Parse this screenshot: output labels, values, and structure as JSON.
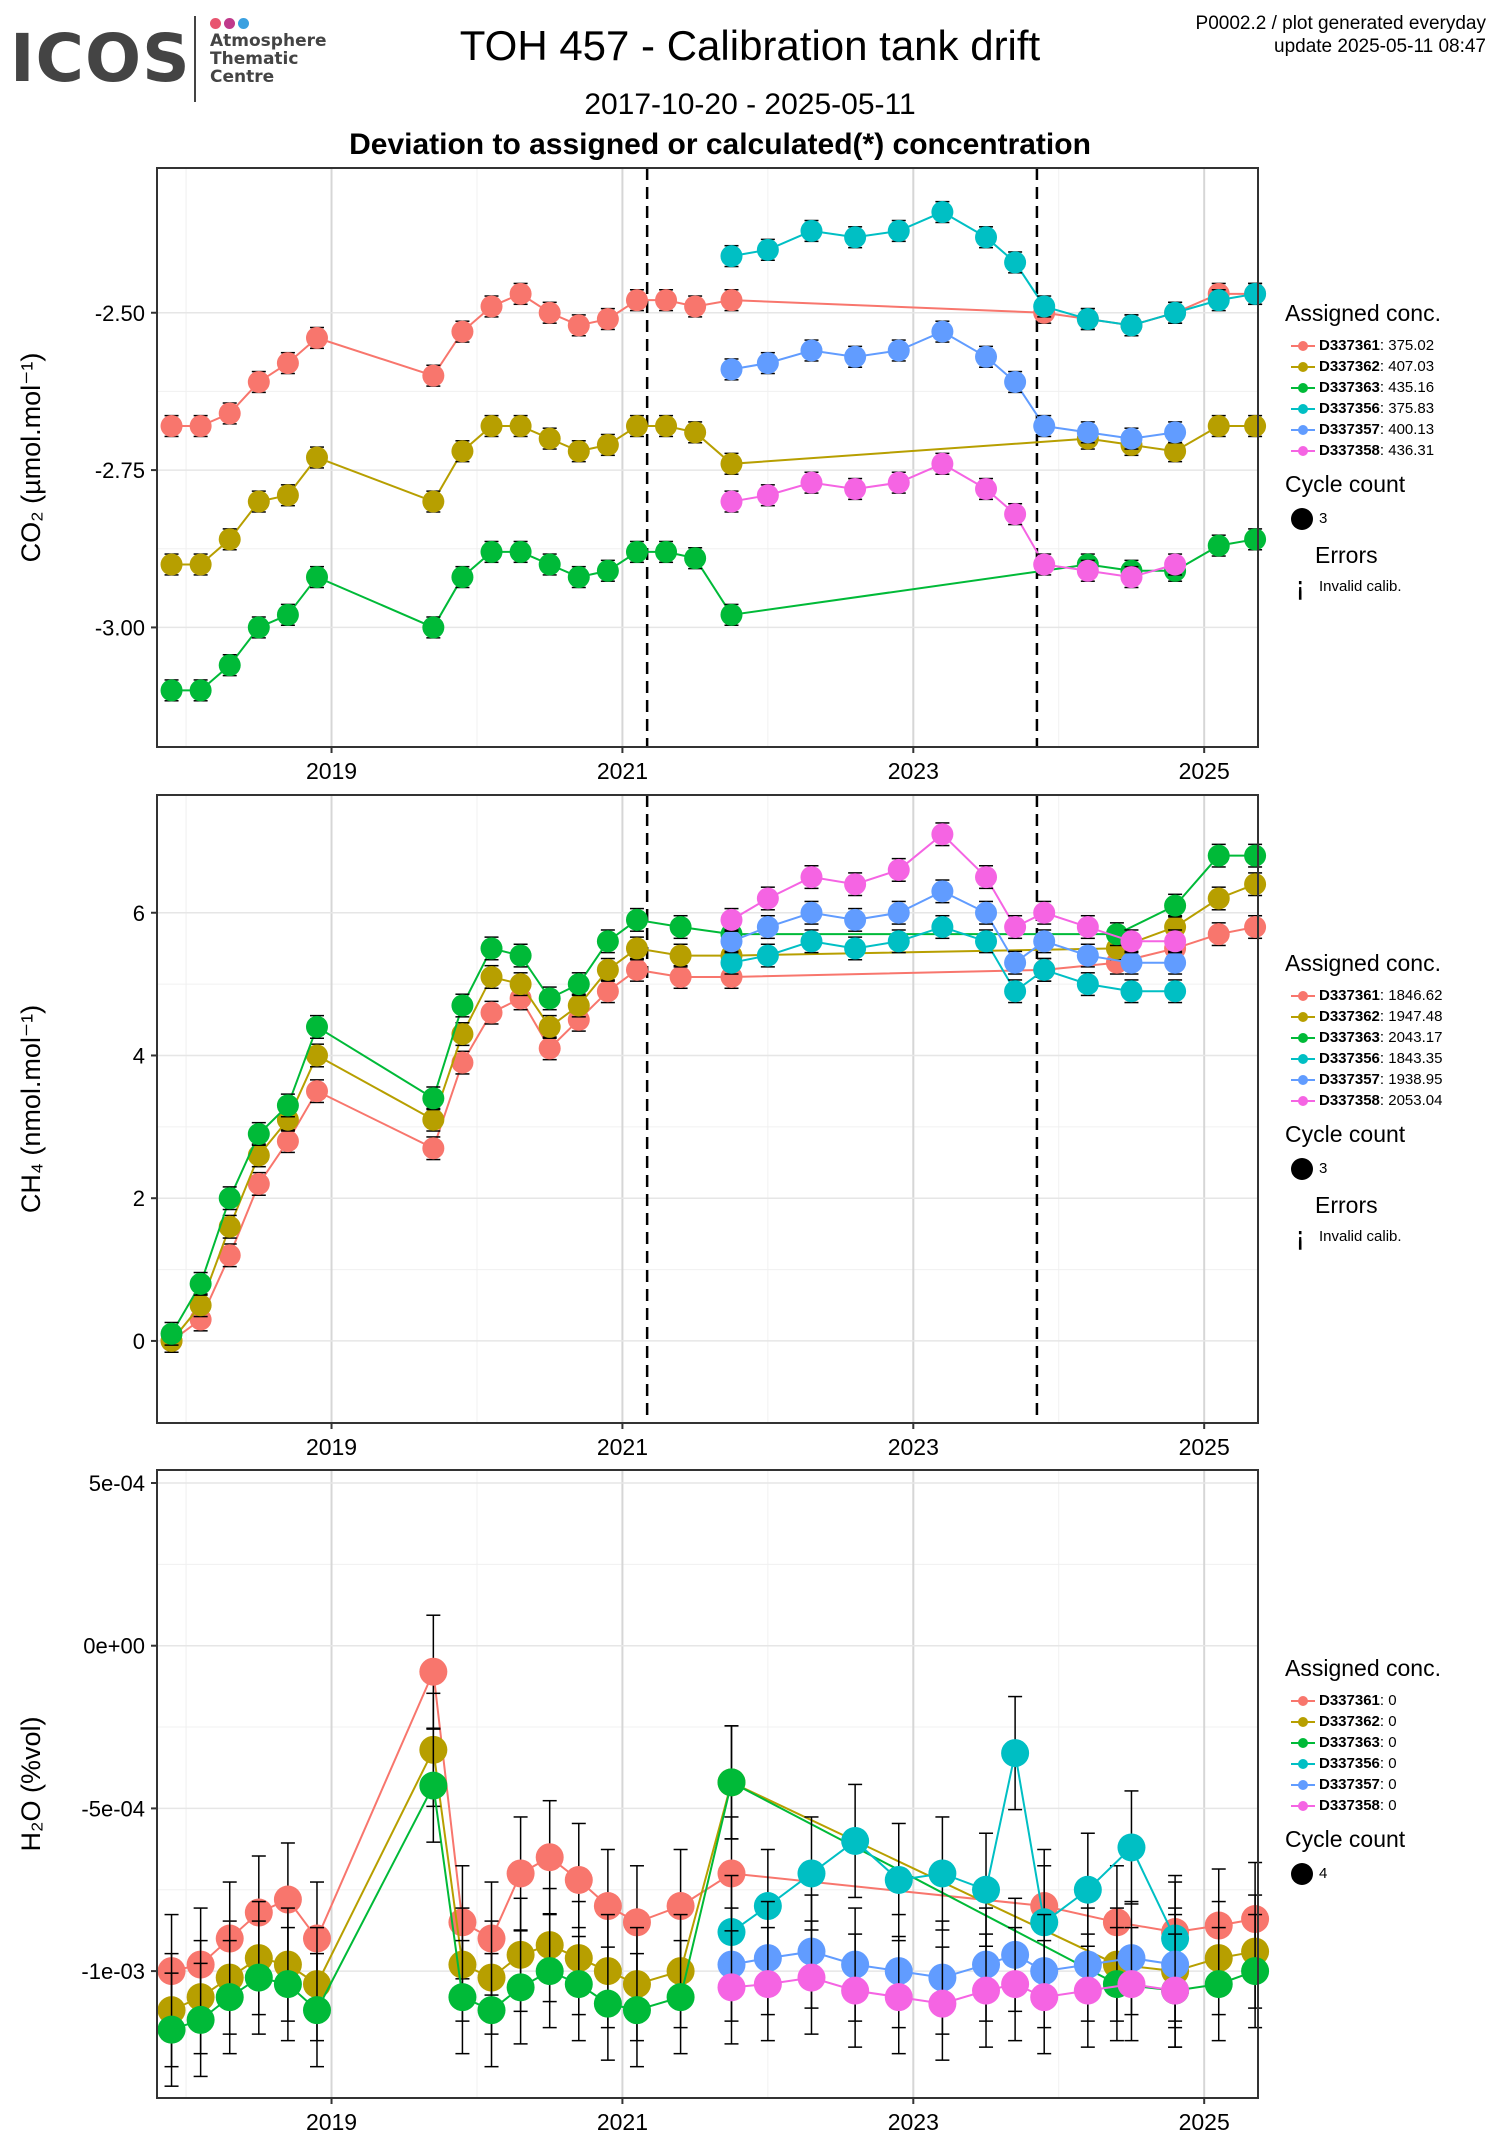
{
  "logo": {
    "text": "ICOS",
    "subtitle_lines": [
      "Atmosphere",
      "Thematic",
      "Centre"
    ],
    "dot_colors": [
      "#e8556f",
      "#c0398b",
      "#3aa0e0"
    ]
  },
  "header": {
    "title": "TOH 457 - Calibration tank drift",
    "date_range": "2017-10-20 - 2025-05-11",
    "subtitle": "Deviation to assigned or calculated(*) concentration",
    "meta_line1": "P0002.2 / plot generated everyday",
    "meta_line2": "update  2025-05-11 08:47"
  },
  "series_colors": {
    "D337361": "#f8766d",
    "D337362": "#b79f00",
    "D337363": "#00ba38",
    "D337356": "#00bfc4",
    "D337357": "#619cff",
    "D337358": "#f564e3"
  },
  "legends": [
    {
      "title": "Assigned conc.",
      "entries": [
        {
          "tank": "D337361",
          "value": "375.02"
        },
        {
          "tank": "D337362",
          "value": "407.03"
        },
        {
          "tank": "D337363",
          "value": "435.16"
        },
        {
          "tank": "D337356",
          "value": "375.83"
        },
        {
          "tank": "D337357",
          "value": "400.13"
        },
        {
          "tank": "D337358",
          "value": "436.31"
        }
      ],
      "cycle_title": "Cycle count",
      "cycle_value": "3",
      "errors_title": "Errors",
      "errors_label": "Invalid calib.",
      "errors_glyph": "¡"
    },
    {
      "title": "Assigned conc.",
      "entries": [
        {
          "tank": "D337361",
          "value": "1846.62"
        },
        {
          "tank": "D337362",
          "value": "1947.48"
        },
        {
          "tank": "D337363",
          "value": "2043.17"
        },
        {
          "tank": "D337356",
          "value": "1843.35"
        },
        {
          "tank": "D337357",
          "value": "1938.95"
        },
        {
          "tank": "D337358",
          "value": "2053.04"
        }
      ],
      "cycle_title": "Cycle count",
      "cycle_value": "3",
      "errors_title": "Errors",
      "errors_label": "Invalid calib.",
      "errors_glyph": "¡"
    },
    {
      "title": "Assigned conc.",
      "entries": [
        {
          "tank": "D337361",
          "value": "0"
        },
        {
          "tank": "D337362",
          "value": "0"
        },
        {
          "tank": "D337363",
          "value": "0"
        },
        {
          "tank": "D337356",
          "value": "0"
        },
        {
          "tank": "D337357",
          "value": "0"
        },
        {
          "tank": "D337358",
          "value": "0"
        }
      ],
      "cycle_title": "Cycle count",
      "cycle_value": "4"
    }
  ],
  "chart_data": [
    {
      "type": "scatter",
      "ylabel": "CO₂ (µmol.mol⁻¹)",
      "x_ticks": [
        "2019",
        "2021",
        "2023",
        "2025"
      ],
      "y_ticks": [
        "-2.50",
        "-2.75",
        "-3.00"
      ],
      "xlim": [
        2017.8,
        2025.37
      ],
      "ylim": [
        -3.19,
        -2.27
      ],
      "vlines": [
        2021.17,
        2023.85
      ],
      "grid": true,
      "series": [
        {
          "name": "D337361",
          "x": [
            2017.9,
            2018.1,
            2018.3,
            2018.5,
            2018.7,
            2018.9,
            2019.7,
            2019.9,
            2020.1,
            2020.3,
            2020.5,
            2020.7,
            2020.9,
            2021.1,
            2021.3,
            2021.5,
            2021.75,
            2023.9,
            2024.2,
            2024.5,
            2024.8,
            2025.1,
            2025.35
          ],
          "y": [
            -2.68,
            -2.68,
            -2.66,
            -2.61,
            -2.58,
            -2.54,
            -2.6,
            -2.53,
            -2.49,
            -2.47,
            -2.5,
            -2.52,
            -2.51,
            -2.48,
            -2.48,
            -2.49,
            -2.48,
            -2.5,
            -2.51,
            -2.52,
            -2.5,
            -2.47,
            -2.47
          ]
        },
        {
          "name": "D337362",
          "x": [
            2017.9,
            2018.1,
            2018.3,
            2018.5,
            2018.7,
            2018.9,
            2019.7,
            2019.9,
            2020.1,
            2020.3,
            2020.5,
            2020.7,
            2020.9,
            2021.1,
            2021.3,
            2021.5,
            2021.75,
            2024.2,
            2024.5,
            2024.8,
            2025.1,
            2025.35
          ],
          "y": [
            -2.9,
            -2.9,
            -2.86,
            -2.8,
            -2.79,
            -2.73,
            -2.8,
            -2.72,
            -2.68,
            -2.68,
            -2.7,
            -2.72,
            -2.71,
            -2.68,
            -2.68,
            -2.69,
            -2.74,
            -2.7,
            -2.71,
            -2.72,
            -2.68,
            -2.68
          ]
        },
        {
          "name": "D337363",
          "x": [
            2017.9,
            2018.1,
            2018.3,
            2018.5,
            2018.7,
            2018.9,
            2019.7,
            2019.9,
            2020.1,
            2020.3,
            2020.5,
            2020.7,
            2020.9,
            2021.1,
            2021.3,
            2021.5,
            2021.75,
            2024.2,
            2024.5,
            2024.8,
            2025.1,
            2025.35
          ],
          "y": [
            -3.1,
            -3.1,
            -3.06,
            -3.0,
            -2.98,
            -2.92,
            -3.0,
            -2.92,
            -2.88,
            -2.88,
            -2.9,
            -2.92,
            -2.91,
            -2.88,
            -2.88,
            -2.89,
            -2.98,
            -2.9,
            -2.91,
            -2.91,
            -2.87,
            -2.86
          ]
        },
        {
          "name": "D337356",
          "x": [
            2021.75,
            2022.0,
            2022.3,
            2022.6,
            2022.9,
            2023.2,
            2023.5,
            2023.7,
            2023.9,
            2024.2,
            2024.5,
            2024.8,
            2025.1,
            2025.35
          ],
          "y": [
            -2.41,
            -2.4,
            -2.37,
            -2.38,
            -2.37,
            -2.34,
            -2.38,
            -2.42,
            -2.49,
            -2.51,
            -2.52,
            -2.5,
            -2.48,
            -2.47
          ]
        },
        {
          "name": "D337357",
          "x": [
            2021.75,
            2022.0,
            2022.3,
            2022.6,
            2022.9,
            2023.2,
            2023.5,
            2023.7,
            2023.9,
            2024.2,
            2024.5,
            2024.8
          ],
          "y": [
            -2.59,
            -2.58,
            -2.56,
            -2.57,
            -2.56,
            -2.53,
            -2.57,
            -2.61,
            -2.68,
            -2.69,
            -2.7,
            -2.69
          ]
        },
        {
          "name": "D337358",
          "x": [
            2021.75,
            2022.0,
            2022.3,
            2022.6,
            2022.9,
            2023.2,
            2023.5,
            2023.7,
            2023.9,
            2024.2,
            2024.5,
            2024.8
          ],
          "y": [
            -2.8,
            -2.79,
            -2.77,
            -2.78,
            -2.77,
            -2.74,
            -2.78,
            -2.82,
            -2.9,
            -2.91,
            -2.92,
            -2.9
          ]
        }
      ]
    },
    {
      "type": "scatter",
      "ylabel": "CH₄ (nmol.mol⁻¹)",
      "x_ticks": [
        "2019",
        "2021",
        "2023",
        "2025"
      ],
      "y_ticks": [
        "0",
        "2",
        "4",
        "6"
      ],
      "xlim": [
        2017.8,
        2025.37
      ],
      "ylim": [
        -1.15,
        7.65
      ],
      "vlines": [
        2021.17,
        2023.85
      ],
      "grid": true,
      "series": [
        {
          "name": "D337361",
          "x": [
            2017.9,
            2018.1,
            2018.3,
            2018.5,
            2018.7,
            2018.9,
            2019.7,
            2019.9,
            2020.1,
            2020.3,
            2020.5,
            2020.7,
            2020.9,
            2021.1,
            2021.4,
            2021.75,
            2023.9,
            2024.4,
            2024.8,
            2025.1,
            2025.35
          ],
          "y": [
            0.0,
            0.3,
            1.2,
            2.2,
            2.8,
            3.5,
            2.7,
            3.9,
            4.6,
            4.8,
            4.1,
            4.5,
            4.9,
            5.2,
            5.1,
            5.1,
            5.2,
            5.3,
            5.5,
            5.7,
            5.8
          ]
        },
        {
          "name": "D337362",
          "x": [
            2017.9,
            2018.1,
            2018.3,
            2018.5,
            2018.7,
            2018.9,
            2019.7,
            2019.9,
            2020.1,
            2020.3,
            2020.5,
            2020.7,
            2020.9,
            2021.1,
            2021.4,
            2021.75,
            2024.4,
            2024.8,
            2025.1,
            2025.35
          ],
          "y": [
            0.0,
            0.5,
            1.6,
            2.6,
            3.1,
            4.0,
            3.1,
            4.3,
            5.1,
            5.0,
            4.4,
            4.7,
            5.2,
            5.5,
            5.4,
            5.4,
            5.5,
            5.8,
            6.2,
            6.4
          ]
        },
        {
          "name": "D337363",
          "x": [
            2017.9,
            2018.1,
            2018.3,
            2018.5,
            2018.7,
            2018.9,
            2019.7,
            2019.9,
            2020.1,
            2020.3,
            2020.5,
            2020.7,
            2020.9,
            2021.1,
            2021.4,
            2021.75,
            2024.4,
            2024.8,
            2025.1,
            2025.35
          ],
          "y": [
            0.1,
            0.8,
            2.0,
            2.9,
            3.3,
            4.4,
            3.4,
            4.7,
            5.5,
            5.4,
            4.8,
            5.0,
            5.6,
            5.9,
            5.8,
            5.7,
            5.7,
            6.1,
            6.8,
            6.8
          ]
        },
        {
          "name": "D337356",
          "x": [
            2021.75,
            2022.0,
            2022.3,
            2022.6,
            2022.9,
            2023.2,
            2023.5,
            2023.7,
            2023.9,
            2024.2,
            2024.5,
            2024.8
          ],
          "y": [
            5.3,
            5.4,
            5.6,
            5.5,
            5.6,
            5.8,
            5.6,
            4.9,
            5.2,
            5.0,
            4.9,
            4.9
          ]
        },
        {
          "name": "D337357",
          "x": [
            2021.75,
            2022.0,
            2022.3,
            2022.6,
            2022.9,
            2023.2,
            2023.5,
            2023.7,
            2023.9,
            2024.2,
            2024.5,
            2024.8
          ],
          "y": [
            5.6,
            5.8,
            6.0,
            5.9,
            6.0,
            6.3,
            6.0,
            5.3,
            5.6,
            5.4,
            5.3,
            5.3
          ]
        },
        {
          "name": "D337358",
          "x": [
            2021.75,
            2022.0,
            2022.3,
            2022.6,
            2022.9,
            2023.2,
            2023.5,
            2023.7,
            2023.9,
            2024.2,
            2024.5,
            2024.8
          ],
          "y": [
            5.9,
            6.2,
            6.5,
            6.4,
            6.6,
            7.1,
            6.5,
            5.8,
            6.0,
            5.8,
            5.6,
            5.6
          ]
        }
      ]
    },
    {
      "type": "scatter",
      "ylabel": "H₂O (%vol)",
      "x_ticks": [
        "2019",
        "2021",
        "2023",
        "2025"
      ],
      "y_ticks": [
        "5e-04",
        "0e+00",
        "-5e-04",
        "-1e-03"
      ],
      "xlim": [
        2017.8,
        2025.37
      ],
      "ylim": [
        -0.00139,
        0.00054
      ],
      "vlines": [],
      "grid": true,
      "series": [
        {
          "name": "D337361",
          "x": [
            2017.9,
            2018.1,
            2018.3,
            2018.5,
            2018.7,
            2018.9,
            2019.7,
            2019.9,
            2020.1,
            2020.3,
            2020.5,
            2020.7,
            2020.9,
            2021.1,
            2021.4,
            2021.75,
            2023.9,
            2024.4,
            2024.8,
            2025.1,
            2025.35
          ],
          "y": [
            -0.001,
            -0.00098,
            -0.0009,
            -0.00082,
            -0.00078,
            -0.0009,
            -8e-05,
            -0.00085,
            -0.0009,
            -0.0007,
            -0.00065,
            -0.00072,
            -0.0008,
            -0.00085,
            -0.0008,
            -0.0007,
            -0.0008,
            -0.00085,
            -0.00088,
            -0.00086,
            -0.00084
          ]
        },
        {
          "name": "D337362",
          "x": [
            2017.9,
            2018.1,
            2018.3,
            2018.5,
            2018.7,
            2018.9,
            2019.7,
            2019.9,
            2020.1,
            2020.3,
            2020.5,
            2020.7,
            2020.9,
            2021.1,
            2021.4,
            2021.75,
            2024.4,
            2024.8,
            2025.1,
            2025.35
          ],
          "y": [
            -0.00112,
            -0.00108,
            -0.00102,
            -0.00096,
            -0.00098,
            -0.00104,
            -0.00032,
            -0.00098,
            -0.00102,
            -0.00095,
            -0.00092,
            -0.00096,
            -0.001,
            -0.00104,
            -0.001,
            -0.00042,
            -0.00098,
            -0.001,
            -0.00096,
            -0.00094
          ]
        },
        {
          "name": "D337363",
          "x": [
            2017.9,
            2018.1,
            2018.3,
            2018.5,
            2018.7,
            2018.9,
            2019.7,
            2019.9,
            2020.1,
            2020.3,
            2020.5,
            2020.7,
            2020.9,
            2021.1,
            2021.4,
            2021.75,
            2024.4,
            2024.8,
            2025.1,
            2025.35
          ],
          "y": [
            -0.00118,
            -0.00115,
            -0.00108,
            -0.00102,
            -0.00104,
            -0.00112,
            -0.00043,
            -0.00108,
            -0.00112,
            -0.00105,
            -0.001,
            -0.00104,
            -0.0011,
            -0.00112,
            -0.00108,
            -0.00042,
            -0.00104,
            -0.00106,
            -0.00104,
            -0.001
          ]
        },
        {
          "name": "D337356",
          "x": [
            2021.75,
            2022.0,
            2022.3,
            2022.6,
            2022.9,
            2023.2,
            2023.5,
            2023.7,
            2023.9,
            2024.2,
            2024.5,
            2024.8
          ],
          "y": [
            -0.00088,
            -0.0008,
            -0.0007,
            -0.0006,
            -0.00072,
            -0.0007,
            -0.00075,
            -0.00033,
            -0.00085,
            -0.00075,
            -0.00062,
            -0.0009
          ]
        },
        {
          "name": "D337357",
          "x": [
            2021.75,
            2022.0,
            2022.3,
            2022.6,
            2022.9,
            2023.2,
            2023.5,
            2023.7,
            2023.9,
            2024.2,
            2024.5,
            2024.8
          ],
          "y": [
            -0.00098,
            -0.00096,
            -0.00094,
            -0.00098,
            -0.001,
            -0.00102,
            -0.00098,
            -0.00095,
            -0.001,
            -0.00098,
            -0.00096,
            -0.00098
          ]
        },
        {
          "name": "D337358",
          "x": [
            2021.75,
            2022.0,
            2022.3,
            2022.6,
            2022.9,
            2023.2,
            2023.5,
            2023.7,
            2023.9,
            2024.2,
            2024.5,
            2024.8
          ],
          "y": [
            -0.00105,
            -0.00104,
            -0.00102,
            -0.00106,
            -0.00108,
            -0.0011,
            -0.00106,
            -0.00104,
            -0.00108,
            -0.00106,
            -0.00104,
            -0.00106
          ]
        }
      ]
    }
  ]
}
